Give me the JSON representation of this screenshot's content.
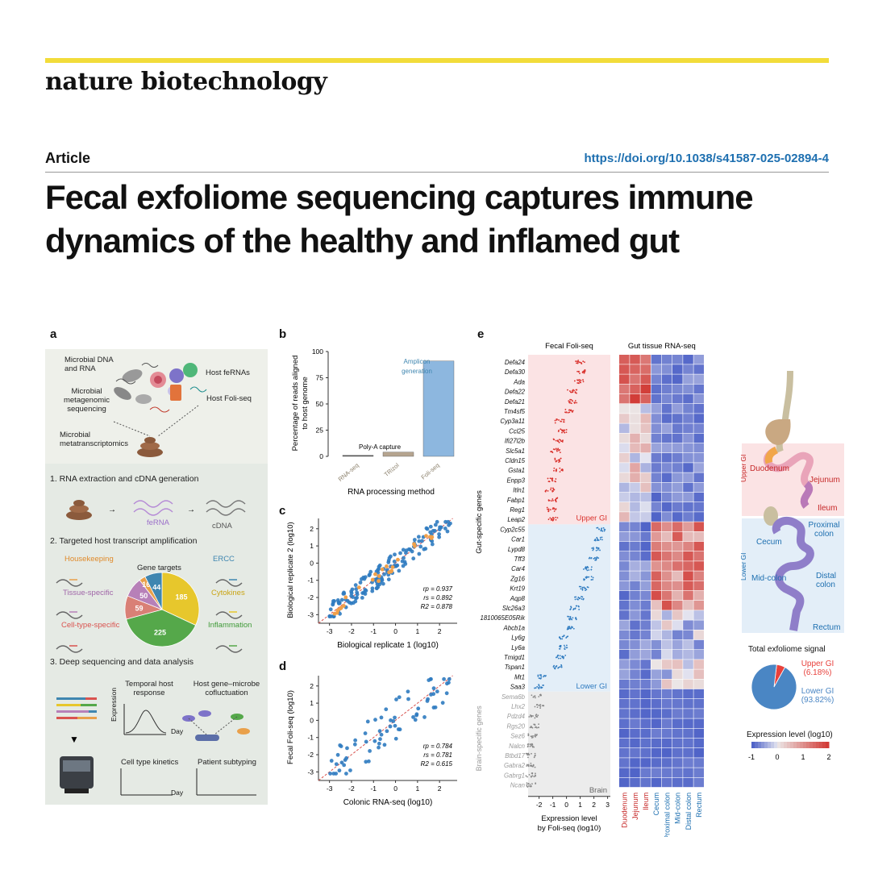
{
  "header": {
    "journal": "nature biotechnology",
    "article_type": "Article",
    "doi": "https://doi.org/10.1038/s41587-025-02894-4",
    "title": "Fecal exfoliome sequencing captures immune dynamics of the healthy and inflamed gut"
  },
  "panel_a": {
    "label": "a",
    "microbial_dna_rna": "Microbial DNA and RNA",
    "host_ferna": "Host feRNAs",
    "microbial_metagenomic": "Microbial metagenomic sequencing",
    "host_foliseq": "Host Foli-seq",
    "microbial_metatranscriptomics": "Microbial metatranscriptomics",
    "step1": "1. RNA extraction and cDNA generation",
    "ferna": "feRNA",
    "cdna": "cDNA",
    "step2": "2. Targeted host transcript amplification",
    "housekeeping": "Housekeeping",
    "gene_targets": "Gene targets",
    "ercc": "ERCC",
    "tissue_specific": "Tissue-specific",
    "cytokines": "Cytokines",
    "cell_type_specific": "Cell-type-specific",
    "inflammation": "Inflammation",
    "pie_values": [
      {
        "label": "185",
        "value": 185,
        "color": "#e7c72c"
      },
      {
        "label": "225",
        "value": 225,
        "color": "#55a84a"
      },
      {
        "label": "59",
        "value": 59,
        "color": "#d98076"
      },
      {
        "label": "50",
        "value": 50,
        "color": "#b780b8"
      },
      {
        "label": "16",
        "value": 16,
        "color": "#e9a04a"
      },
      {
        "label": "44",
        "value": 44,
        "color": "#3f86b0"
      }
    ],
    "step3": "3. Deep sequencing and data analysis",
    "temporal": "Temporal host response",
    "cofluct": "Host gene–microbe cofluctuation",
    "expression": "Expression",
    "day": "Day",
    "kinetics": "Cell type kinetics",
    "subtyping": "Patient subtyping",
    "day2": "Day"
  },
  "chart_data": [
    {
      "panel": "b",
      "type": "bar",
      "categories": [
        "RNA-seq",
        "TRizol",
        "Foli-seq"
      ],
      "values": [
        1,
        4,
        91
      ],
      "colors": [
        "#555555",
        "#b5a48f",
        "#8db7df"
      ],
      "ylabel": "Percentage of reads aligned to host genome",
      "xlabel": "RNA processing method",
      "ylim": [
        0,
        100
      ],
      "yticks": [
        "0",
        "25",
        "50",
        "75",
        "100"
      ],
      "annotations": [
        "Poly-A capture",
        "Amplicon generation"
      ]
    },
    {
      "panel": "c",
      "type": "scatter",
      "xlabel": "Biological replicate 1 (log10)",
      "ylabel": "Biological replicate 2 (log10)",
      "xlim": [
        -3.5,
        2.8
      ],
      "ylim": [
        -3.5,
        2.6
      ],
      "xticks": [
        "-3",
        "-2",
        "-1",
        "0",
        "1",
        "2"
      ],
      "yticks": [
        "-3",
        "-2",
        "-1",
        "0",
        "1",
        "2"
      ],
      "stats": [
        "rp = 0.937",
        "rs = 0.892",
        "R2 = 0.878"
      ]
    },
    {
      "panel": "d",
      "type": "scatter",
      "xlabel": "Colonic RNA-seq (log10)",
      "ylabel": "Fecal Foli-seq (log10)",
      "xlim": [
        -3.5,
        2.8
      ],
      "ylim": [
        -3.5,
        2.6
      ],
      "xticks": [
        "-3",
        "-2",
        "-1",
        "0",
        "1",
        "2"
      ],
      "yticks": [
        "-3",
        "-2",
        "-1",
        "0",
        "1",
        "2"
      ],
      "stats": [
        "rp = 0.784",
        "rs = 0.781",
        "R2 = 0.615"
      ]
    },
    {
      "panel": "e-left",
      "type": "scatter",
      "title": "Fecal Foli-seq",
      "xlabel": "Expression level by Foli-seq (log10)",
      "xticks": [
        "-2",
        "-1",
        "0",
        "1",
        "2",
        "3"
      ],
      "ylabel_gut": "Gut-specific genes",
      "ylabel_brain": "Brain-specific genes",
      "upper_label": "Upper GI",
      "lower_label": "Lower GI",
      "brain_label": "Brain",
      "upper_genes": [
        "Defa24",
        "Defa30",
        "Ada",
        "Defa22",
        "Defa21",
        "Tm4sf5",
        "Cyp3a11",
        "Ccl25",
        "Ifi27l2b",
        "Slc5a1",
        "Cldn15",
        "Gsta1",
        "Enpp3",
        "Itln1",
        "Fabp1",
        "Reg1",
        "Leap2"
      ],
      "upper_means": [
        1.0,
        1.1,
        0.9,
        0.4,
        0.5,
        0.2,
        -0.5,
        -0.3,
        -0.6,
        -0.8,
        -0.5,
        -0.6,
        -1.1,
        -1.2,
        -1.0,
        -1.1,
        -1.0
      ],
      "lower_genes": [
        "Cyp2c55",
        "Car1",
        "Lypd8",
        "Tff3",
        "Car4",
        "Zg16",
        "Krt19",
        "Aqp8",
        "Slc26a3",
        "1810065E05Rik",
        "Abcb1a",
        "Ly6g",
        "Ly6a",
        "Tmigd1",
        "Tspan1",
        "Mt1",
        "Saa3"
      ],
      "lower_means": [
        2.5,
        2.3,
        2.1,
        2.0,
        1.5,
        1.6,
        1.3,
        0.9,
        0.6,
        0.4,
        0.2,
        -0.2,
        -0.3,
        -0.4,
        -0.7,
        -1.8,
        -2.0
      ],
      "brain_genes": [
        "Sema6b",
        "Lhx2",
        "Pdzd4",
        "Rgs20",
        "Sez6",
        "Nalcn",
        "Btbd17",
        "Gabra2",
        "Gabrg1",
        "Ncan"
      ],
      "brain_means": [
        -2.2,
        -2.0,
        -2.4,
        -2.3,
        -2.5,
        -2.6,
        -2.6,
        -2.6,
        -2.6,
        -2.6
      ]
    },
    {
      "panel": "e-right",
      "type": "heatmap",
      "title": "Gut tissue RNA-seq",
      "columns": [
        "Duodenum",
        "Jejunum",
        "Ileum",
        "Cecum",
        "Proximal colon",
        "Mid-colon",
        "Distal colon",
        "Rectum"
      ],
      "column_colors": [
        "#c62828",
        "#c62828",
        "#c62828",
        "#1d6fb0",
        "#1d6fb0",
        "#1d6fb0",
        "#1d6fb0",
        "#1d6fb0"
      ],
      "legend_title": "Expression level (log10)",
      "legend_ticks": [
        "-1",
        "0",
        "1",
        "2"
      ],
      "range": [
        -1,
        2
      ]
    },
    {
      "panel": "e-pie",
      "type": "pie",
      "title": "Total exfoliome signal",
      "slices": [
        {
          "label": "Upper GI",
          "pct_label": "(6.18%)",
          "value": 6.18,
          "color": "#e8413c"
        },
        {
          "label": "Lower GI",
          "pct_label": "(93.82%)",
          "value": 93.82,
          "color": "#4a86c4"
        }
      ]
    }
  ],
  "panel_labels": {
    "b": "b",
    "c": "c",
    "d": "d",
    "e": "e"
  },
  "gut_diagram": {
    "upper_gi": "Upper GI",
    "lower_gi": "Lower GI",
    "duodenum": "Duodenum",
    "jejunum": "Jejunum",
    "ileum": "Ileum",
    "cecum": "Cecum",
    "proximal_colon": "Proximal colon",
    "mid_colon": "Mid-colon",
    "distal_colon": "Distal colon",
    "rectum": "Rectum"
  }
}
